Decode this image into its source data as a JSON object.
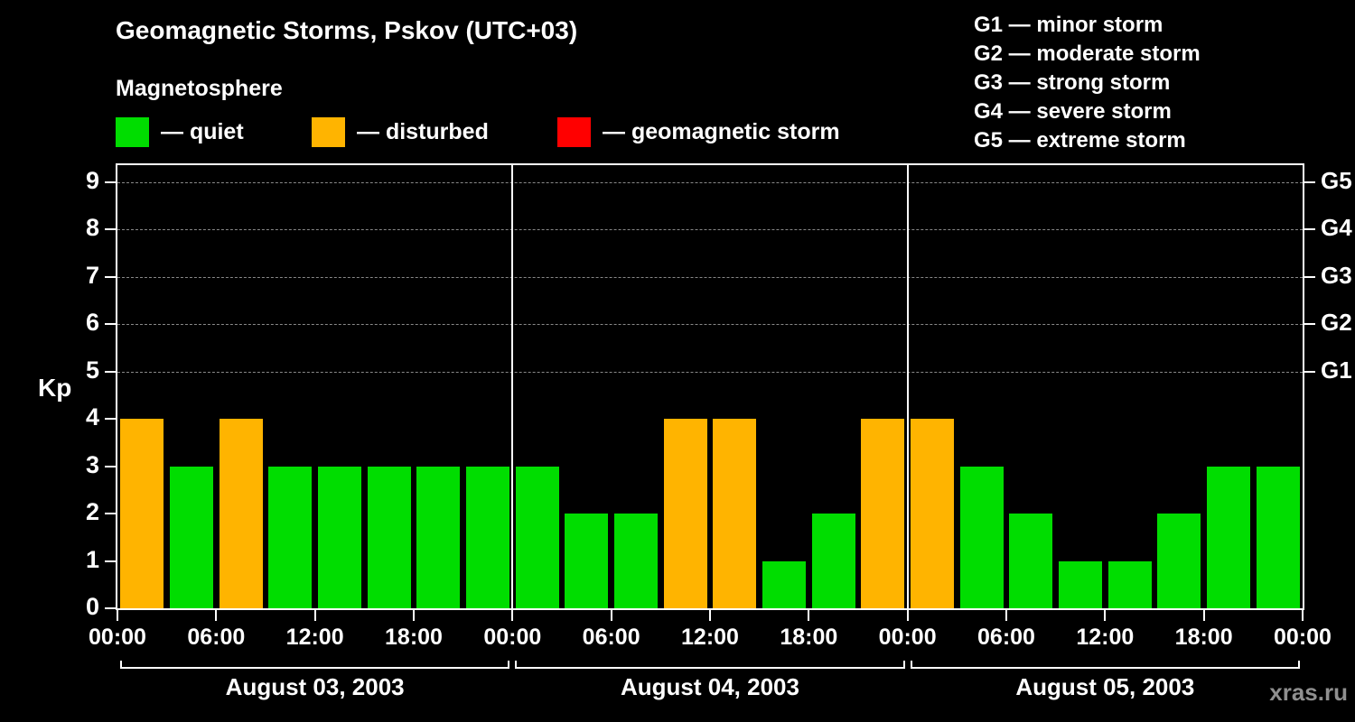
{
  "header": {
    "title": "Geomagnetic Storms, Pskov (UTC+03)",
    "subtitle": "Magnetosphere"
  },
  "legend": {
    "items": [
      {
        "name": "quiet",
        "label": "— quiet",
        "color": "#00dd00"
      },
      {
        "name": "disturbed",
        "label": "— disturbed",
        "color": "#ffb400"
      },
      {
        "name": "storm",
        "label": "— geomagnetic storm",
        "color": "#ff0000"
      }
    ]
  },
  "storm_scale": [
    {
      "label": "G1 — minor storm"
    },
    {
      "label": "G2 — moderate storm"
    },
    {
      "label": "G3 — strong storm"
    },
    {
      "label": "G4 — severe storm"
    },
    {
      "label": "G5 — extreme storm"
    }
  ],
  "watermark": "xras.ru",
  "chart_data": {
    "type": "bar",
    "title": "Geomagnetic Storms, Pskov (UTC+03)",
    "subtitle": "Magnetosphere",
    "ylabel": "Kp",
    "ylim": [
      0,
      9
    ],
    "yticks": [
      0,
      1,
      2,
      3,
      4,
      5,
      6,
      7,
      8,
      9
    ],
    "gridlines_kp": [
      5,
      6,
      7,
      8,
      9
    ],
    "grid": "dashed horizontal at G-levels only",
    "legend_position": "top-left",
    "right_axis": [
      {
        "kp": 5,
        "label": "G1"
      },
      {
        "kp": 6,
        "label": "G2"
      },
      {
        "kp": 7,
        "label": "G3"
      },
      {
        "kp": 8,
        "label": "G4"
      },
      {
        "kp": 9,
        "label": "G5"
      }
    ],
    "x_tick_labels": [
      "00:00",
      "06:00",
      "12:00",
      "18:00",
      "00:00",
      "06:00",
      "12:00",
      "18:00",
      "00:00",
      "06:00",
      "12:00",
      "18:00",
      "00:00"
    ],
    "hours_per_bar": 3,
    "days": [
      {
        "label": "August 03, 2003",
        "values": [
          4,
          3,
          4,
          3,
          3,
          3,
          3,
          3
        ]
      },
      {
        "label": "August 04, 2003",
        "values": [
          3,
          2,
          2,
          4,
          4,
          1,
          2,
          4
        ]
      },
      {
        "label": "August 05, 2003",
        "values": [
          4,
          3,
          2,
          1,
          1,
          2,
          3,
          3
        ]
      }
    ],
    "colors": {
      "quiet": "#00dd00",
      "disturbed": "#ffb400",
      "storm": "#ff0000"
    },
    "color_thresholds": {
      "quiet_max": 3,
      "disturbed_max": 4
    }
  }
}
